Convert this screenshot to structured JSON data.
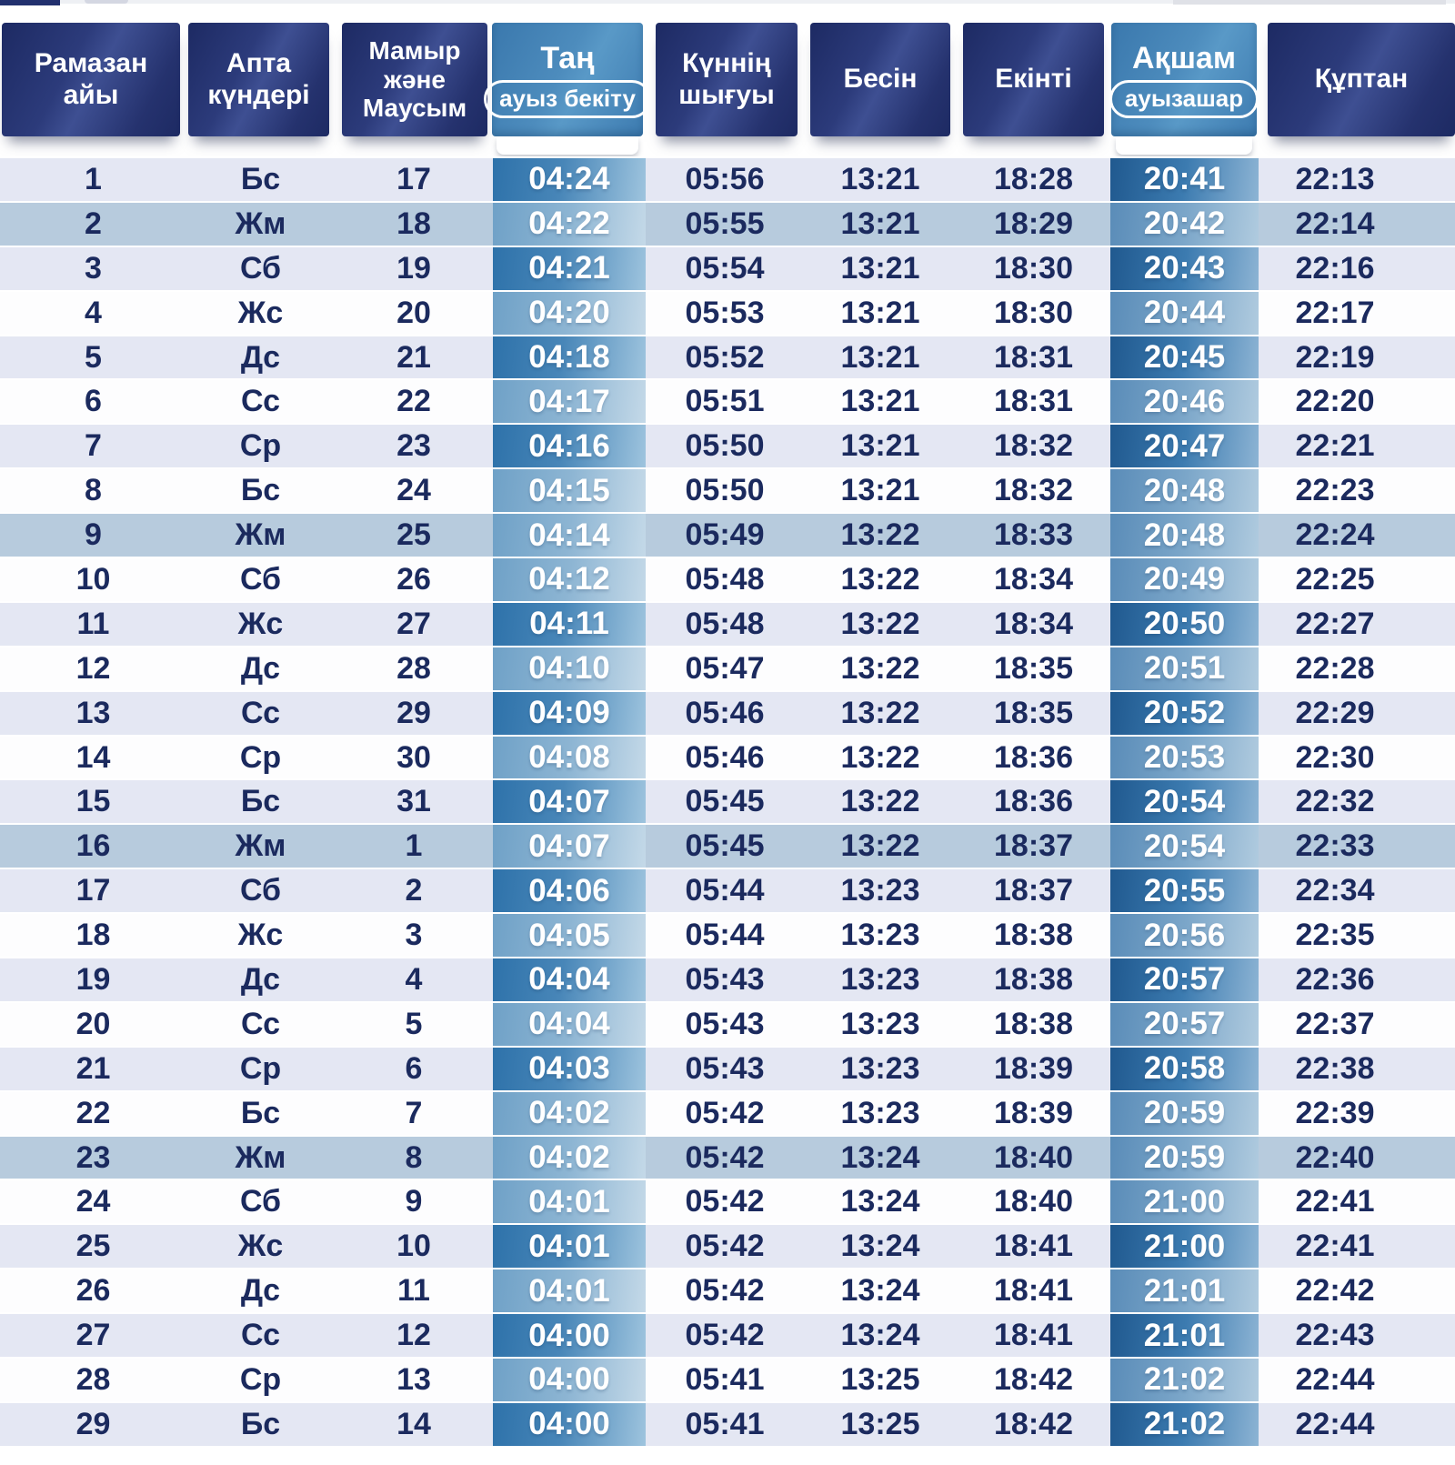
{
  "title": "Ramadan prayer timetable (Kazakh)",
  "colors": {
    "header_navy": "#22306e",
    "header_blue": "#4787b9",
    "stripe_odd": "#e4e7f3",
    "stripe_even": "#fdfdfe",
    "stripe_friday": "#b7cbdd",
    "text_navy": "#1b2a5e",
    "time_white": "#ffffff",
    "tan_dark_from": "#2e72aa",
    "tan_dark_to": "#9ec4de",
    "tan_light_from": "#6fa1c7",
    "tan_light_to": "#c4d9e8",
    "aksham_dark_from": "#20598f",
    "aksham_dark_to": "#8db4d4",
    "aksham_light_from": "#5a8cb8",
    "aksham_light_to": "#b0cbdf"
  },
  "table": {
    "friday_code": "Жм",
    "columns": [
      {
        "key": "ramadan-day",
        "label": "Рамазан айы",
        "style": "dark"
      },
      {
        "key": "weekday",
        "label": "Апта күндері",
        "style": "dark"
      },
      {
        "key": "date",
        "label": "Мамыр және Маусым",
        "style": "dark"
      },
      {
        "key": "fajr",
        "label": "Таң",
        "sublabel": "ауыз бекіту",
        "style": "light"
      },
      {
        "key": "sunrise",
        "label": "Күннің шығуы",
        "style": "dark"
      },
      {
        "key": "dhuhr",
        "label": "Бесін",
        "style": "dark"
      },
      {
        "key": "asr",
        "label": "Екінті",
        "style": "dark"
      },
      {
        "key": "maghrib",
        "label": "Ақшам",
        "sublabel": "ауызашар",
        "style": "light"
      },
      {
        "key": "isha",
        "label": "Құптан",
        "style": "dark"
      }
    ],
    "rows": [
      [
        "1",
        "Бс",
        "17",
        "04:24",
        "05:56",
        "13:21",
        "18:28",
        "20:41",
        "22:13"
      ],
      [
        "2",
        "Жм",
        "18",
        "04:22",
        "05:55",
        "13:21",
        "18:29",
        "20:42",
        "22:14"
      ],
      [
        "3",
        "Сб",
        "19",
        "04:21",
        "05:54",
        "13:21",
        "18:30",
        "20:43",
        "22:16"
      ],
      [
        "4",
        "Жс",
        "20",
        "04:20",
        "05:53",
        "13:21",
        "18:30",
        "20:44",
        "22:17"
      ],
      [
        "5",
        "Дс",
        "21",
        "04:18",
        "05:52",
        "13:21",
        "18:31",
        "20:45",
        "22:19"
      ],
      [
        "6",
        "Сс",
        "22",
        "04:17",
        "05:51",
        "13:21",
        "18:31",
        "20:46",
        "22:20"
      ],
      [
        "7",
        "Ср",
        "23",
        "04:16",
        "05:50",
        "13:21",
        "18:32",
        "20:47",
        "22:21"
      ],
      [
        "8",
        "Бс",
        "24",
        "04:15",
        "05:50",
        "13:21",
        "18:32",
        "20:48",
        "22:23"
      ],
      [
        "9",
        "Жм",
        "25",
        "04:14",
        "05:49",
        "13:22",
        "18:33",
        "20:48",
        "22:24"
      ],
      [
        "10",
        "Сб",
        "26",
        "04:12",
        "05:48",
        "13:22",
        "18:34",
        "20:49",
        "22:25"
      ],
      [
        "11",
        "Жс",
        "27",
        "04:11",
        "05:48",
        "13:22",
        "18:34",
        "20:50",
        "22:27"
      ],
      [
        "12",
        "Дс",
        "28",
        "04:10",
        "05:47",
        "13:22",
        "18:35",
        "20:51",
        "22:28"
      ],
      [
        "13",
        "Сс",
        "29",
        "04:09",
        "05:46",
        "13:22",
        "18:35",
        "20:52",
        "22:29"
      ],
      [
        "14",
        "Ср",
        "30",
        "04:08",
        "05:46",
        "13:22",
        "18:36",
        "20:53",
        "22:30"
      ],
      [
        "15",
        "Бс",
        "31",
        "04:07",
        "05:45",
        "13:22",
        "18:36",
        "20:54",
        "22:32"
      ],
      [
        "16",
        "Жм",
        "1",
        "04:07",
        "05:45",
        "13:22",
        "18:37",
        "20:54",
        "22:33"
      ],
      [
        "17",
        "Сб",
        "2",
        "04:06",
        "05:44",
        "13:23",
        "18:37",
        "20:55",
        "22:34"
      ],
      [
        "18",
        "Жс",
        "3",
        "04:05",
        "05:44",
        "13:23",
        "18:38",
        "20:56",
        "22:35"
      ],
      [
        "19",
        "Дс",
        "4",
        "04:04",
        "05:43",
        "13:23",
        "18:38",
        "20:57",
        "22:36"
      ],
      [
        "20",
        "Сс",
        "5",
        "04:04",
        "05:43",
        "13:23",
        "18:38",
        "20:57",
        "22:37"
      ],
      [
        "21",
        "Ср",
        "6",
        "04:03",
        "05:43",
        "13:23",
        "18:39",
        "20:58",
        "22:38"
      ],
      [
        "22",
        "Бс",
        "7",
        "04:02",
        "05:42",
        "13:23",
        "18:39",
        "20:59",
        "22:39"
      ],
      [
        "23",
        "Жм",
        "8",
        "04:02",
        "05:42",
        "13:24",
        "18:40",
        "20:59",
        "22:40"
      ],
      [
        "24",
        "Сб",
        "9",
        "04:01",
        "05:42",
        "13:24",
        "18:40",
        "21:00",
        "22:41"
      ],
      [
        "25",
        "Жс",
        "10",
        "04:01",
        "05:42",
        "13:24",
        "18:41",
        "21:00",
        "22:41"
      ],
      [
        "26",
        "Дс",
        "11",
        "04:01",
        "05:42",
        "13:24",
        "18:41",
        "21:01",
        "22:42"
      ],
      [
        "27",
        "Сс",
        "12",
        "04:00",
        "05:42",
        "13:24",
        "18:41",
        "21:01",
        "22:43"
      ],
      [
        "28",
        "Ср",
        "13",
        "04:00",
        "05:41",
        "13:25",
        "18:42",
        "21:02",
        "22:44"
      ],
      [
        "29",
        "Бс",
        "14",
        "04:00",
        "05:41",
        "13:25",
        "18:42",
        "21:02",
        "22:44"
      ]
    ]
  }
}
